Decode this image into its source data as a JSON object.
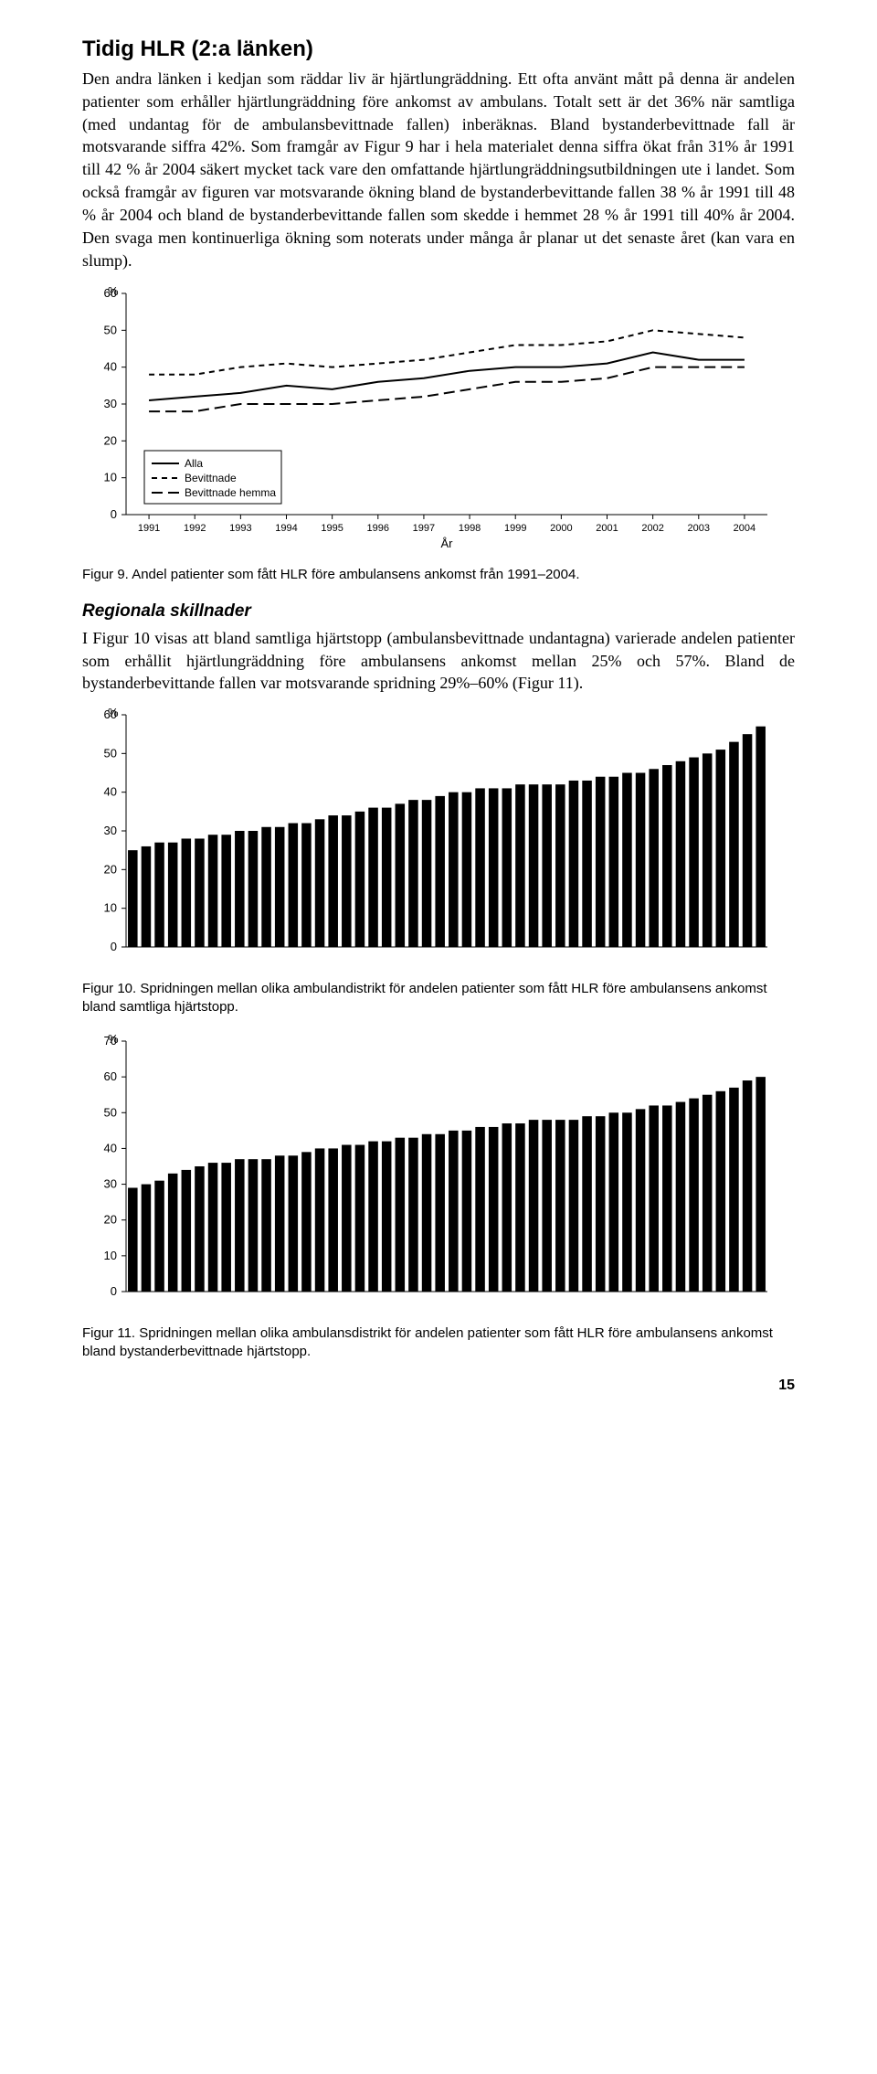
{
  "heading": "Tidig HLR (2:a länken)",
  "para1": "Den andra länken i kedjan som räddar liv är hjärtlungräddning. Ett ofta använt mått på denna är andelen patienter som erhåller hjärtlungräddning före ankomst av ambulans. Totalt sett är det 36% när samtliga (med undantag för de ambulansbevittnade fallen) inberäknas. Bland bystanderbevittnade fall är motsvarande siffra 42%. Som framgår av Figur 9 har i hela materialet denna siffra ökat från 31% år 1991 till 42 % år 2004 säkert mycket tack vare den omfattande hjärtlungräddningsutbildningen ute i landet. Som också framgår av figuren var motsvarande ökning bland de bystanderbevittande fallen 38 % år 1991 till 48 % år 2004 och bland de bystanderbevittande fallen som skedde i hemmet 28 % år 1991 till 40% år 2004. Den svaga men kontinuerliga ökning som noterats under många år planar ut det senaste året (kan vara en slump).",
  "fig9_caption": "Figur 9. Andel patienter som fått HLR före ambulansens ankomst från 1991–2004.",
  "subheading": "Regionala skillnader",
  "para2": "I Figur 10 visas att bland samtliga hjärtstopp (ambulansbevittnade undantagna) varierade andelen patienter som erhållit hjärtlungräddning före ambulansens ankomst mellan 25% och 57%. Bland de bystanderbevittande fallen var motsvarande spridning 29%–60% (Figur 11).",
  "fig10_caption": "Figur 10. Spridningen mellan olika ambulandistrikt för andelen patienter som fått HLR före ambulansens ankomst bland samtliga hjärtstopp.",
  "fig11_caption": "Figur 11. Spridningen mellan olika ambulansdistrikt för andelen patienter som fått HLR före ambulansens ankomst bland bystanderbevittnade hjärtstopp.",
  "page_number": "15",
  "fig9": {
    "type": "line",
    "ylabel": "%",
    "xlabel": "År",
    "ylim": [
      0,
      60
    ],
    "ytick_step": 10,
    "years": [
      1991,
      1992,
      1993,
      1994,
      1995,
      1996,
      1997,
      1998,
      1999,
      2000,
      2001,
      2002,
      2003,
      2004
    ],
    "series": [
      {
        "name": "Alla",
        "dash": "solid",
        "values": [
          31,
          32,
          33,
          35,
          34,
          36,
          37,
          39,
          40,
          40,
          41,
          44,
          42,
          42
        ]
      },
      {
        "name": "Bevittnade",
        "dash": "dash",
        "values": [
          38,
          38,
          40,
          41,
          40,
          41,
          42,
          44,
          46,
          46,
          47,
          50,
          49,
          48
        ]
      },
      {
        "name": "Bevittnade hemma",
        "dash": "longdash",
        "values": [
          28,
          28,
          30,
          30,
          30,
          31,
          32,
          34,
          36,
          36,
          37,
          40,
          40,
          40
        ]
      }
    ],
    "background_color": "#ffffff",
    "line_color": "#000000",
    "axis_color": "#000000",
    "label_fontsize": 13,
    "legend_fontsize": 12
  },
  "fig10": {
    "type": "bar",
    "ylabel": "%",
    "ylim": [
      0,
      60
    ],
    "ytick_step": 10,
    "values": [
      25,
      26,
      27,
      27,
      28,
      28,
      29,
      29,
      30,
      30,
      31,
      31,
      32,
      32,
      33,
      34,
      34,
      35,
      36,
      36,
      37,
      38,
      38,
      39,
      40,
      40,
      41,
      41,
      41,
      42,
      42,
      42,
      42,
      43,
      43,
      44,
      44,
      45,
      45,
      46,
      47,
      48,
      49,
      50,
      51,
      53,
      55,
      57
    ],
    "bar_color": "#000000",
    "background_color": "#ffffff",
    "axis_color": "#000000",
    "label_fontsize": 13
  },
  "fig11": {
    "type": "bar",
    "ylabel": "%",
    "ylim": [
      0,
      70
    ],
    "ytick_step": 10,
    "values": [
      29,
      30,
      31,
      33,
      34,
      35,
      36,
      36,
      37,
      37,
      37,
      38,
      38,
      39,
      40,
      40,
      41,
      41,
      42,
      42,
      43,
      43,
      44,
      44,
      45,
      45,
      46,
      46,
      47,
      47,
      48,
      48,
      48,
      48,
      49,
      49,
      50,
      50,
      51,
      52,
      52,
      53,
      54,
      55,
      56,
      57,
      59,
      60
    ],
    "bar_color": "#000000",
    "background_color": "#ffffff",
    "axis_color": "#000000",
    "label_fontsize": 13
  }
}
